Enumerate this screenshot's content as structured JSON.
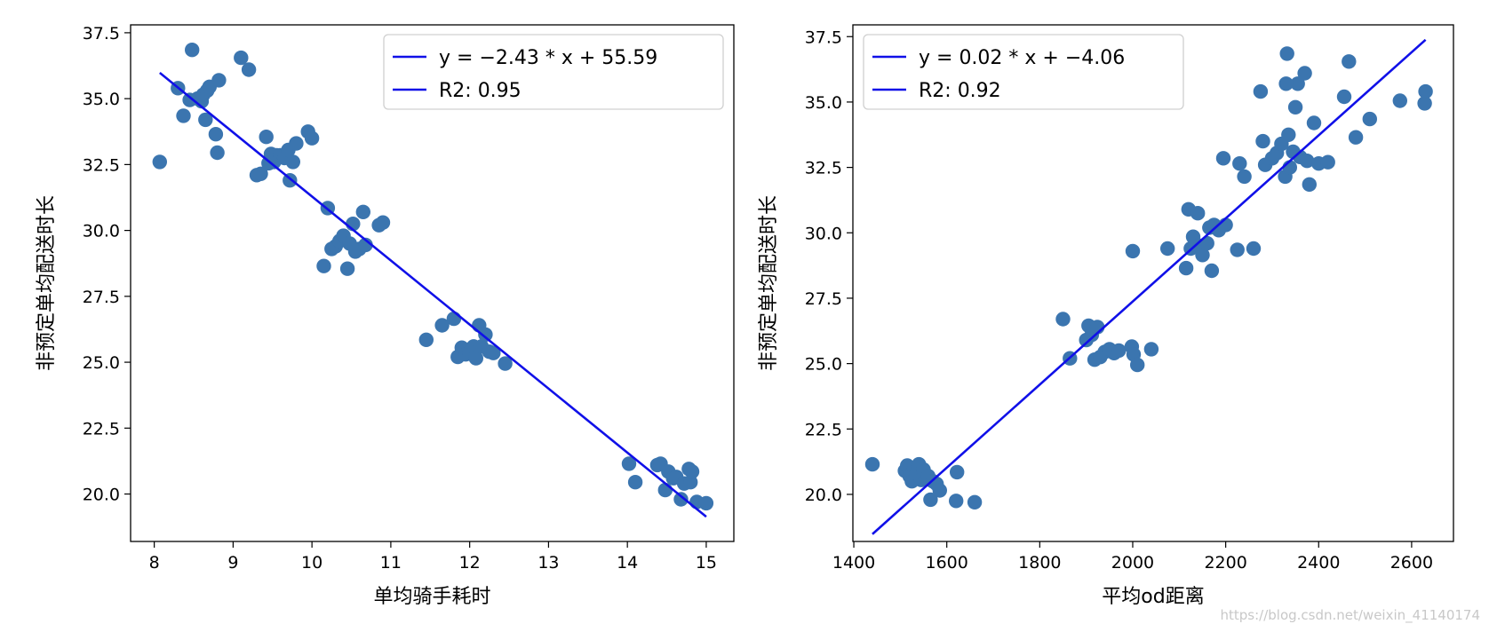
{
  "colors": {
    "points": "#3b75af",
    "line": "#1010e8",
    "axes": "#000000"
  },
  "watermark": "https://blog.csdn.net/weixin_41140174",
  "chart_data": [
    {
      "type": "scatter",
      "xlabel": "单均骑手耗时",
      "ylabel": "非预定单均配送时长",
      "xlim": [
        7.7,
        15.35
      ],
      "ylim": [
        18.2,
        37.8
      ],
      "xticks": [
        8,
        9,
        10,
        11,
        12,
        13,
        14,
        15
      ],
      "yticks": [
        20.0,
        22.5,
        25.0,
        27.5,
        30.0,
        32.5,
        35.0,
        37.5
      ],
      "legend": {
        "position": "top-right",
        "entries": [
          "y = −2.43 * x + 55.59",
          "R2: 0.95"
        ]
      },
      "fit": {
        "x": [
          8.07,
          15.0
        ],
        "y": [
          35.98,
          19.14
        ]
      },
      "points": [
        [
          8.07,
          32.6
        ],
        [
          8.3,
          35.4
        ],
        [
          8.37,
          34.35
        ],
        [
          8.45,
          34.95
        ],
        [
          8.48,
          36.85
        ],
        [
          8.55,
          35.0
        ],
        [
          8.6,
          34.9
        ],
        [
          8.62,
          35.15
        ],
        [
          8.65,
          34.2
        ],
        [
          8.67,
          35.3
        ],
        [
          8.7,
          35.45
        ],
        [
          8.78,
          33.65
        ],
        [
          8.8,
          32.95
        ],
        [
          8.82,
          35.7
        ],
        [
          9.1,
          36.55
        ],
        [
          9.2,
          36.1
        ],
        [
          9.3,
          32.1
        ],
        [
          9.35,
          32.15
        ],
        [
          9.42,
          33.55
        ],
        [
          9.45,
          32.55
        ],
        [
          9.48,
          32.9
        ],
        [
          9.52,
          32.6
        ],
        [
          9.55,
          32.85
        ],
        [
          9.6,
          32.85
        ],
        [
          9.65,
          32.75
        ],
        [
          9.7,
          33.05
        ],
        [
          9.72,
          31.9
        ],
        [
          9.76,
          32.6
        ],
        [
          9.8,
          33.3
        ],
        [
          9.95,
          33.75
        ],
        [
          10.0,
          33.5
        ],
        [
          10.2,
          30.85
        ],
        [
          10.25,
          29.3
        ],
        [
          10.3,
          29.4
        ],
        [
          10.35,
          29.6
        ],
        [
          10.4,
          29.8
        ],
        [
          10.45,
          28.55
        ],
        [
          10.48,
          29.5
        ],
        [
          10.52,
          30.25
        ],
        [
          10.55,
          29.2
        ],
        [
          10.6,
          29.3
        ],
        [
          10.65,
          30.7
        ],
        [
          10.68,
          29.45
        ],
        [
          10.85,
          30.2
        ],
        [
          10.9,
          30.3
        ],
        [
          10.15,
          28.65
        ],
        [
          11.45,
          25.85
        ],
        [
          11.65,
          26.4
        ],
        [
          11.8,
          26.65
        ],
        [
          11.85,
          25.2
        ],
        [
          11.9,
          25.55
        ],
        [
          11.95,
          25.3
        ],
        [
          12.0,
          25.35
        ],
        [
          12.05,
          25.6
        ],
        [
          12.08,
          25.15
        ],
        [
          12.12,
          26.4
        ],
        [
          12.15,
          25.6
        ],
        [
          12.2,
          26.05
        ],
        [
          12.25,
          25.4
        ],
        [
          12.3,
          25.35
        ],
        [
          12.45,
          24.95
        ],
        [
          14.02,
          21.15
        ],
        [
          14.1,
          20.45
        ],
        [
          14.38,
          21.1
        ],
        [
          14.42,
          21.15
        ],
        [
          14.48,
          20.15
        ],
        [
          14.52,
          20.85
        ],
        [
          14.58,
          20.6
        ],
        [
          14.62,
          20.65
        ],
        [
          14.68,
          19.8
        ],
        [
          14.72,
          20.4
        ],
        [
          14.78,
          20.95
        ],
        [
          14.8,
          20.45
        ],
        [
          14.82,
          20.85
        ],
        [
          14.88,
          19.7
        ],
        [
          15.0,
          19.65
        ]
      ]
    },
    {
      "type": "scatter",
      "xlabel": "平均od距离",
      "ylabel": "非预定单均配送时长",
      "xlim": [
        1398,
        2690
      ],
      "ylim": [
        18.2,
        37.95
      ],
      "xticks": [
        1400,
        1600,
        1800,
        2000,
        2200,
        2400,
        2600
      ],
      "yticks": [
        20.0,
        22.5,
        25.0,
        27.5,
        30.0,
        32.5,
        35.0,
        37.5
      ],
      "legend": {
        "position": "top-left",
        "entries": [
          "y = 0.02 * x + −4.06",
          "R2: 0.92"
        ]
      },
      "fit": {
        "x": [
          1440,
          2630
        ],
        "y": [
          18.48,
          37.38
        ]
      },
      "points": [
        [
          1440,
          21.15
        ],
        [
          1510,
          20.9
        ],
        [
          1515,
          21.1
        ],
        [
          1520,
          20.7
        ],
        [
          1525,
          20.5
        ],
        [
          1530,
          21.0
        ],
        [
          1535,
          20.8
        ],
        [
          1540,
          21.15
        ],
        [
          1545,
          20.55
        ],
        [
          1550,
          20.95
        ],
        [
          1555,
          20.6
        ],
        [
          1560,
          20.7
        ],
        [
          1565,
          19.8
        ],
        [
          1570,
          20.5
        ],
        [
          1578,
          20.4
        ],
        [
          1585,
          20.15
        ],
        [
          1620,
          19.75
        ],
        [
          1622,
          20.85
        ],
        [
          1660,
          19.7
        ],
        [
          1850,
          26.7
        ],
        [
          1865,
          25.2
        ],
        [
          1900,
          25.9
        ],
        [
          1905,
          26.45
        ],
        [
          1912,
          26.1
        ],
        [
          1918,
          25.15
        ],
        [
          1924,
          26.4
        ],
        [
          1930,
          25.25
        ],
        [
          1940,
          25.45
        ],
        [
          1950,
          25.55
        ],
        [
          1960,
          25.4
        ],
        [
          1970,
          25.5
        ],
        [
          1998,
          25.65
        ],
        [
          2000,
          29.3
        ],
        [
          2002,
          25.35
        ],
        [
          2010,
          24.95
        ],
        [
          2040,
          25.55
        ],
        [
          2075,
          29.4
        ],
        [
          2115,
          28.65
        ],
        [
          2120,
          30.9
        ],
        [
          2125,
          29.4
        ],
        [
          2130,
          29.85
        ],
        [
          2140,
          30.75
        ],
        [
          2145,
          29.5
        ],
        [
          2150,
          29.15
        ],
        [
          2160,
          29.6
        ],
        [
          2165,
          30.2
        ],
        [
          2170,
          28.55
        ],
        [
          2175,
          30.3
        ],
        [
          2185,
          30.1
        ],
        [
          2195,
          32.85
        ],
        [
          2200,
          30.3
        ],
        [
          2225,
          29.35
        ],
        [
          2230,
          32.65
        ],
        [
          2240,
          32.15
        ],
        [
          2260,
          29.4
        ],
        [
          2275,
          35.4
        ],
        [
          2280,
          33.5
        ],
        [
          2285,
          32.6
        ],
        [
          2300,
          32.85
        ],
        [
          2310,
          33.05
        ],
        [
          2320,
          33.4
        ],
        [
          2328,
          32.15
        ],
        [
          2332,
          36.85
        ],
        [
          2335,
          33.75
        ],
        [
          2338,
          32.5
        ],
        [
          2345,
          33.1
        ],
        [
          2350,
          34.8
        ],
        [
          2360,
          32.9
        ],
        [
          2370,
          36.1
        ],
        [
          2375,
          32.75
        ],
        [
          2380,
          31.85
        ],
        [
          2390,
          34.2
        ],
        [
          2400,
          32.65
        ],
        [
          2420,
          32.7
        ],
        [
          2455,
          35.2
        ],
        [
          2465,
          36.55
        ],
        [
          2480,
          33.65
        ],
        [
          2510,
          34.35
        ],
        [
          2575,
          35.05
        ],
        [
          2628,
          34.95
        ],
        [
          2630,
          35.4
        ],
        [
          2355,
          35.7
        ],
        [
          2330,
          35.7
        ]
      ]
    }
  ]
}
